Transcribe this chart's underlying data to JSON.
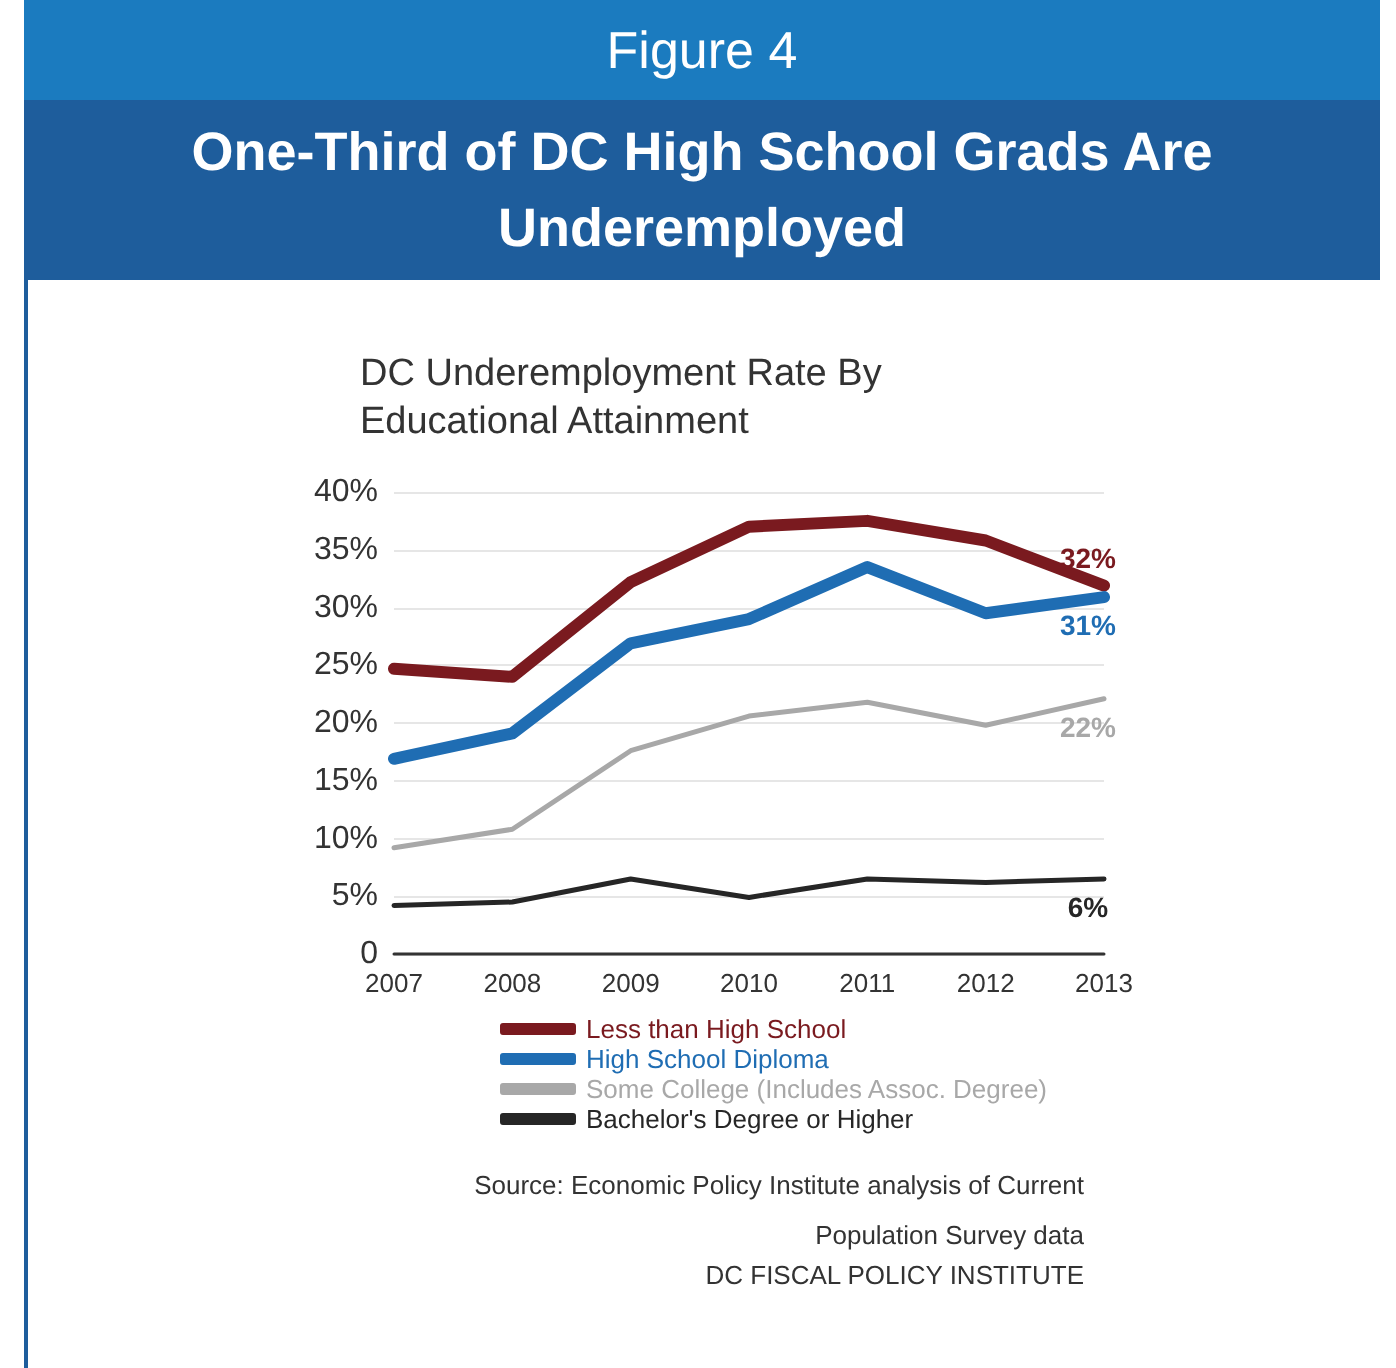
{
  "chart_data": {
    "type": "line",
    "title": "One-Third of DC High School Grads Are Underemployed",
    "subtitle": "DC Underemployment Rate By Educational Attainment",
    "annotations": [
      "Figure 4",
      "Source: Economic Policy Institute analysis of Current Population Survey data",
      "DC FISCAL POLICY INSTITUTE"
    ],
    "categories": [
      "2007",
      "2008",
      "2009",
      "2010",
      "2011",
      "2012",
      "2013"
    ],
    "series": [
      {
        "name": "Less than High School",
        "color": "#7a1a1f",
        "values": [
          24.7,
          24.0,
          32.2,
          37.0,
          37.5,
          35.8,
          31.9
        ],
        "value_labels": [
          null,
          null,
          null,
          null,
          null,
          null,
          "32%"
        ]
      },
      {
        "name": "High School Diploma",
        "color": "#1f6db3",
        "values": [
          16.9,
          19.1,
          26.9,
          29.0,
          33.5,
          29.5,
          30.9
        ],
        "value_labels": [
          null,
          null,
          null,
          null,
          null,
          null,
          "31%"
        ]
      },
      {
        "name": "Some College (Includes Assoc. Degree)",
        "color": "#a8a8a8",
        "values": [
          9.2,
          10.8,
          17.6,
          20.6,
          21.8,
          19.8,
          22.1
        ],
        "value_labels": [
          null,
          null,
          null,
          null,
          null,
          null,
          "22%"
        ]
      },
      {
        "name": "Bachelor's Degree or Higher",
        "color": "#262626",
        "values": [
          4.2,
          4.5,
          6.5,
          4.9,
          6.5,
          6.2,
          6.5
        ],
        "value_labels": [
          null,
          null,
          null,
          null,
          null,
          null,
          "6%"
        ]
      }
    ],
    "ylim": [
      0,
      40
    ],
    "yticks": [
      {
        "value": 0,
        "label": "0"
      },
      {
        "value": 5,
        "label": "5%"
      },
      {
        "value": 10,
        "label": "10%"
      },
      {
        "value": 15,
        "label": "15%"
      },
      {
        "value": 20,
        "label": "20%"
      },
      {
        "value": 25,
        "label": "25%"
      },
      {
        "value": 30,
        "label": "30%"
      },
      {
        "value": 35,
        "label": "35%"
      },
      {
        "value": 40,
        "label": "40%"
      }
    ],
    "grid": "y",
    "legend": "bottom",
    "marker": "none",
    "line_style": "solid"
  }
}
